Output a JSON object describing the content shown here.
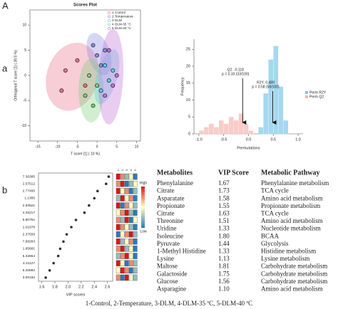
{
  "panel_labels": [
    "A",
    "a",
    "b"
  ],
  "chart_data": [
    {
      "type": "scatter",
      "title": "Scores Plot",
      "xlabel": "T score [1] ( 10 %)",
      "ylabel": "Orthogonal T score [1] ( 39.5 %)",
      "xlim": [
        -17,
        11
      ],
      "xticks": [
        -15,
        -10,
        -5,
        0,
        5,
        10
      ],
      "ylim": [
        -13,
        13
      ],
      "yticks": [
        -10,
        -5,
        0,
        5,
        10
      ],
      "series": [
        {
          "code": "1",
          "name": "Control",
          "color": "#e8708a",
          "x": [
            -5,
            -8,
            -9,
            -3
          ],
          "values": [
            3,
            1,
            -3,
            -2
          ]
        },
        {
          "code": "2",
          "name": "Temperature",
          "color": "#8a8ae0",
          "x": [
            -1,
            0,
            2,
            1
          ],
          "values": [
            6,
            4,
            5,
            2
          ]
        },
        {
          "code": "3",
          "name": "DLM",
          "color": "#7ccf7c",
          "x": [
            -3,
            -1,
            0,
            -2
          ],
          "values": [
            -4,
            -6,
            -2,
            0
          ]
        },
        {
          "code": "4",
          "name": "DLM-35 °C",
          "color": "#5fc8e8",
          "x": [
            2,
            3,
            4,
            1
          ],
          "values": [
            2,
            -1,
            1,
            -3
          ]
        },
        {
          "code": "5",
          "name": "DLM-40 °C",
          "color": "#c070d8",
          "x": [
            3,
            4,
            5,
            2
          ],
          "values": [
            5,
            -2,
            0,
            -4
          ]
        }
      ]
    },
    {
      "type": "histogram",
      "xlabel": "Permutations",
      "ylabel": "Frequency",
      "bins": [
        -1.0,
        -0.9,
        -0.8,
        -0.7,
        -0.6,
        -0.5,
        -0.4,
        -0.3,
        -0.2,
        -0.1,
        0.0,
        0.1,
        0.2,
        0.3,
        0.4,
        0.5,
        0.6,
        0.7,
        0.8,
        0.9,
        1.0
      ],
      "xlim": [
        -1.1,
        1.1
      ],
      "xticks": [
        {
          "value": -1,
          "label": "-1.0"
        },
        -0.5,
        {
          "value": 0,
          "label": "0.0"
        },
        0.5,
        {
          "value": 1,
          "label": "1.0"
        }
      ],
      "ylim": [
        0,
        28
      ],
      "yticks": [
        0,
        5,
        10,
        15,
        20,
        25
      ],
      "series": [
        {
          "name": "Perm R2Y",
          "color": "#7fc8e8",
          "values": [
            0,
            0,
            0,
            0,
            0,
            0,
            0,
            0,
            0,
            0,
            0,
            0,
            2,
            12,
            22,
            26,
            14,
            4,
            0,
            0
          ]
        },
        {
          "name": "Perm Q2",
          "color": "#f5b8b0",
          "values": [
            1,
            2,
            3,
            2,
            4,
            3,
            5,
            4,
            6,
            3,
            1,
            0,
            0,
            0,
            0,
            0,
            0,
            0,
            0,
            0
          ]
        }
      ],
      "annotations": [
        {
          "lines": [
            "Q2: -0.118",
            "p = 0.33 (33/100)"
          ],
          "x": -0.118
        },
        {
          "lines": [
            "R2Y: 0.489",
            "p = 0.58 (58/100)"
          ],
          "x": 0.489
        }
      ]
    },
    {
      "type": "dot",
      "xlabel": "VIP scores",
      "categories": [
        "7.36385",
        "2.57512",
        "2.77465",
        "1.1385",
        "2.53521",
        "4.25217",
        "5.80751",
        "1.01878",
        "2.37559",
        "7.88263",
        "1.85681",
        "5.32864",
        "4.21127",
        "5.20892",
        "3.00192"
      ],
      "values": [
        2.62,
        2.58,
        2.45,
        2.4,
        2.32,
        2.25,
        2.12,
        2.05,
        1.98,
        1.93,
        1.88,
        1.85,
        1.78,
        1.72,
        1.66
      ],
      "xlim": [
        1.55,
        2.68
      ],
      "xticks": [
        1.6,
        1.8,
        {
          "value": 2,
          "label": "2.0"
        },
        2.2,
        2.4,
        2.6
      ],
      "heatmap": {
        "columns": [
          "1",
          "2",
          "3",
          "4",
          "5"
        ],
        "legend": [
          "High",
          "Low"
        ],
        "values": [
          [
            2,
            1,
            -1,
            0,
            -2
          ],
          [
            1,
            2,
            -2,
            -1,
            0
          ],
          [
            2,
            0,
            1,
            -2,
            -1
          ],
          [
            -1,
            2,
            0,
            1,
            -2
          ],
          [
            2,
            -2,
            1,
            0,
            -1
          ],
          [
            0,
            1,
            2,
            -1,
            -2
          ],
          [
            1,
            -1,
            2,
            -2,
            0
          ],
          [
            2,
            1,
            0,
            -1,
            -2
          ],
          [
            -2,
            0,
            1,
            2,
            -1
          ],
          [
            2,
            -1,
            0,
            1,
            -2
          ],
          [
            1,
            2,
            -1,
            0,
            -2
          ],
          [
            -1,
            1,
            2,
            0,
            -2
          ],
          [
            2,
            0,
            -2,
            1,
            -1
          ],
          [
            0,
            2,
            1,
            -2,
            -1
          ],
          [
            1,
            -2,
            2,
            0,
            -1
          ]
        ]
      }
    }
  ],
  "table": {
    "header": [
      "Metabolites",
      "VIP Score",
      "Metabolic Pathway"
    ],
    "rows": [
      [
        "Phenylalanine",
        "1.67",
        "Phenylalanine metabolism"
      ],
      [
        "Citrate",
        "1.73",
        "TCA cycle"
      ],
      [
        "Asparatate",
        "1.58",
        "Amino acid metabolism"
      ],
      [
        "Propionate",
        "1.55",
        "Propionate metabolism"
      ],
      [
        "Citrate",
        "1.63",
        "TCA cycle"
      ],
      [
        "Threonine",
        "1.51",
        "Amino acid metabolism"
      ],
      [
        "Uridine",
        "1.33",
        "Nucleotide metabolism"
      ],
      [
        "Isoleucine",
        "1.80",
        "BCAA"
      ],
      [
        "Pyruvate",
        "1.44",
        "Glycolysis"
      ],
      [
        "1-Methyl Histidine",
        "1.33",
        "Histidine metabolism"
      ],
      [
        "Lysine",
        "1.13",
        "Lysine metabolism"
      ],
      [
        "Maltose",
        "1.81",
        "Carbohydrate metabolism"
      ],
      [
        "Galactoside",
        "1.75",
        "Carbohydrate metabolism"
      ],
      [
        "Glucose",
        "1.56",
        "Carbohydrate metabolism"
      ],
      [
        "Asparagine",
        "1.10",
        "Amino acid metabolism"
      ]
    ]
  },
  "footnote": "1-Control, 2-Temperature, 3-DLM, 4-DLM-35 ºC, 5-DLM-40 ºC"
}
